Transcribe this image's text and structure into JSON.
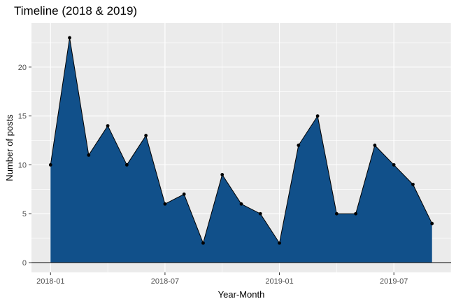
{
  "chart_data": {
    "type": "area",
    "title": "Timeline (2018 & 2019)",
    "xlabel": "Year-Month",
    "ylabel": "Number of posts",
    "x": [
      "2018-01",
      "2018-02",
      "2018-03",
      "2018-04",
      "2018-05",
      "2018-06",
      "2018-07",
      "2018-08",
      "2018-09",
      "2018-10",
      "2018-11",
      "2018-12",
      "2019-01",
      "2019-02",
      "2019-03",
      "2019-04",
      "2019-05",
      "2019-06",
      "2019-07",
      "2019-08",
      "2019-09"
    ],
    "values": [
      10,
      23,
      11,
      14,
      10,
      13,
      6,
      7,
      2,
      9,
      6,
      5,
      2,
      12,
      15,
      5,
      5,
      12,
      10,
      8,
      4
    ],
    "x_ticks": [
      "2018-01",
      "2018-07",
      "2019-01",
      "2019-07"
    ],
    "y_ticks": [
      0,
      5,
      10,
      15,
      20
    ],
    "xlim": [
      "2017-12",
      "2019-10"
    ],
    "ylim": [
      -1,
      24.5
    ],
    "fill_color": "#11508a",
    "line_color": "#000000",
    "point_color": "#000000",
    "panel_background": "#ebebeb",
    "grid_color": "#ffffff",
    "grid": true,
    "legend": "none"
  }
}
